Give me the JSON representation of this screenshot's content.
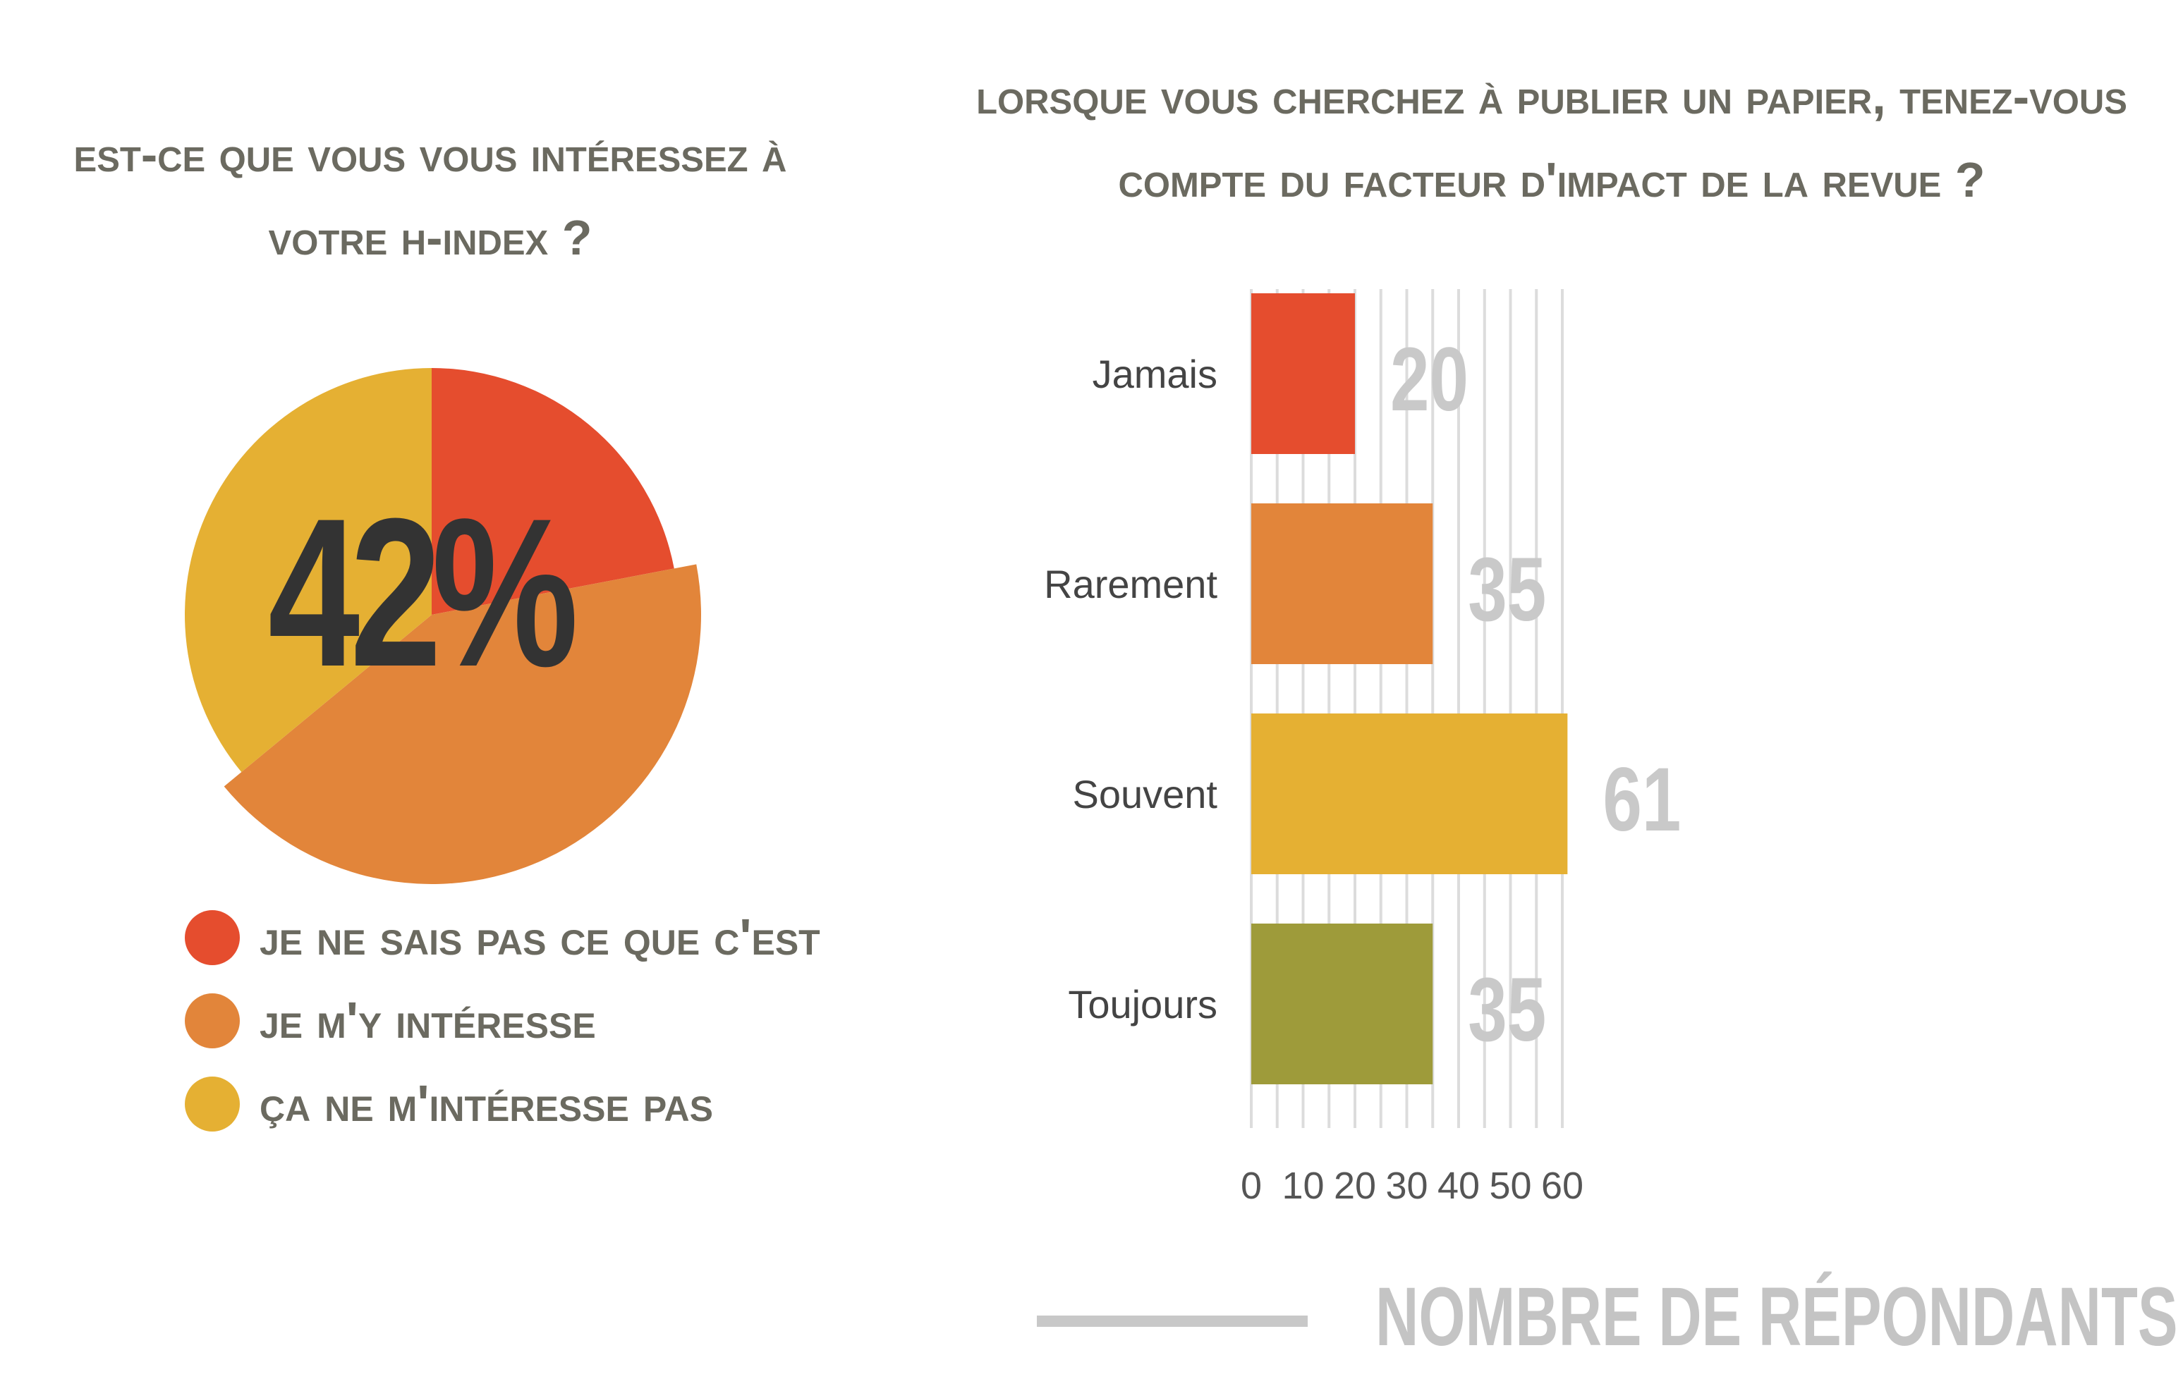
{
  "chart_data": [
    {
      "type": "pie",
      "title": "Est-ce que vous vous intéressez à votre h-index ?",
      "center_label": "42%",
      "slices": [
        {
          "label": "Je ne sais pas ce que c'est",
          "value": 22,
          "color": "#e54d2e"
        },
        {
          "label": "Je m'y intéresse",
          "value": 42,
          "color": "#e2853a"
        },
        {
          "label": "Ça ne m'intéresse pas",
          "value": 36,
          "color": "#e5b033"
        }
      ],
      "legend_position": "bottom"
    },
    {
      "type": "bar",
      "orientation": "horizontal",
      "title": "Lorsque vous cherchez à publier un papier, tenez-vous compte du facteur d'impact de la revue ?",
      "categories": [
        "Jamais",
        "Rarement",
        "Souvent",
        "Toujours"
      ],
      "values": [
        20,
        35,
        61,
        35
      ],
      "colors": [
        "#e54d2e",
        "#e2853a",
        "#e5b033",
        "#9e9b3a"
      ],
      "xticks": [
        "0",
        "10",
        "20",
        "30",
        "40",
        "50",
        "60"
      ],
      "xlim": [
        0,
        60
      ],
      "xlabel": "NOMBRE DE RÉPONDANTS",
      "grid": true
    }
  ]
}
